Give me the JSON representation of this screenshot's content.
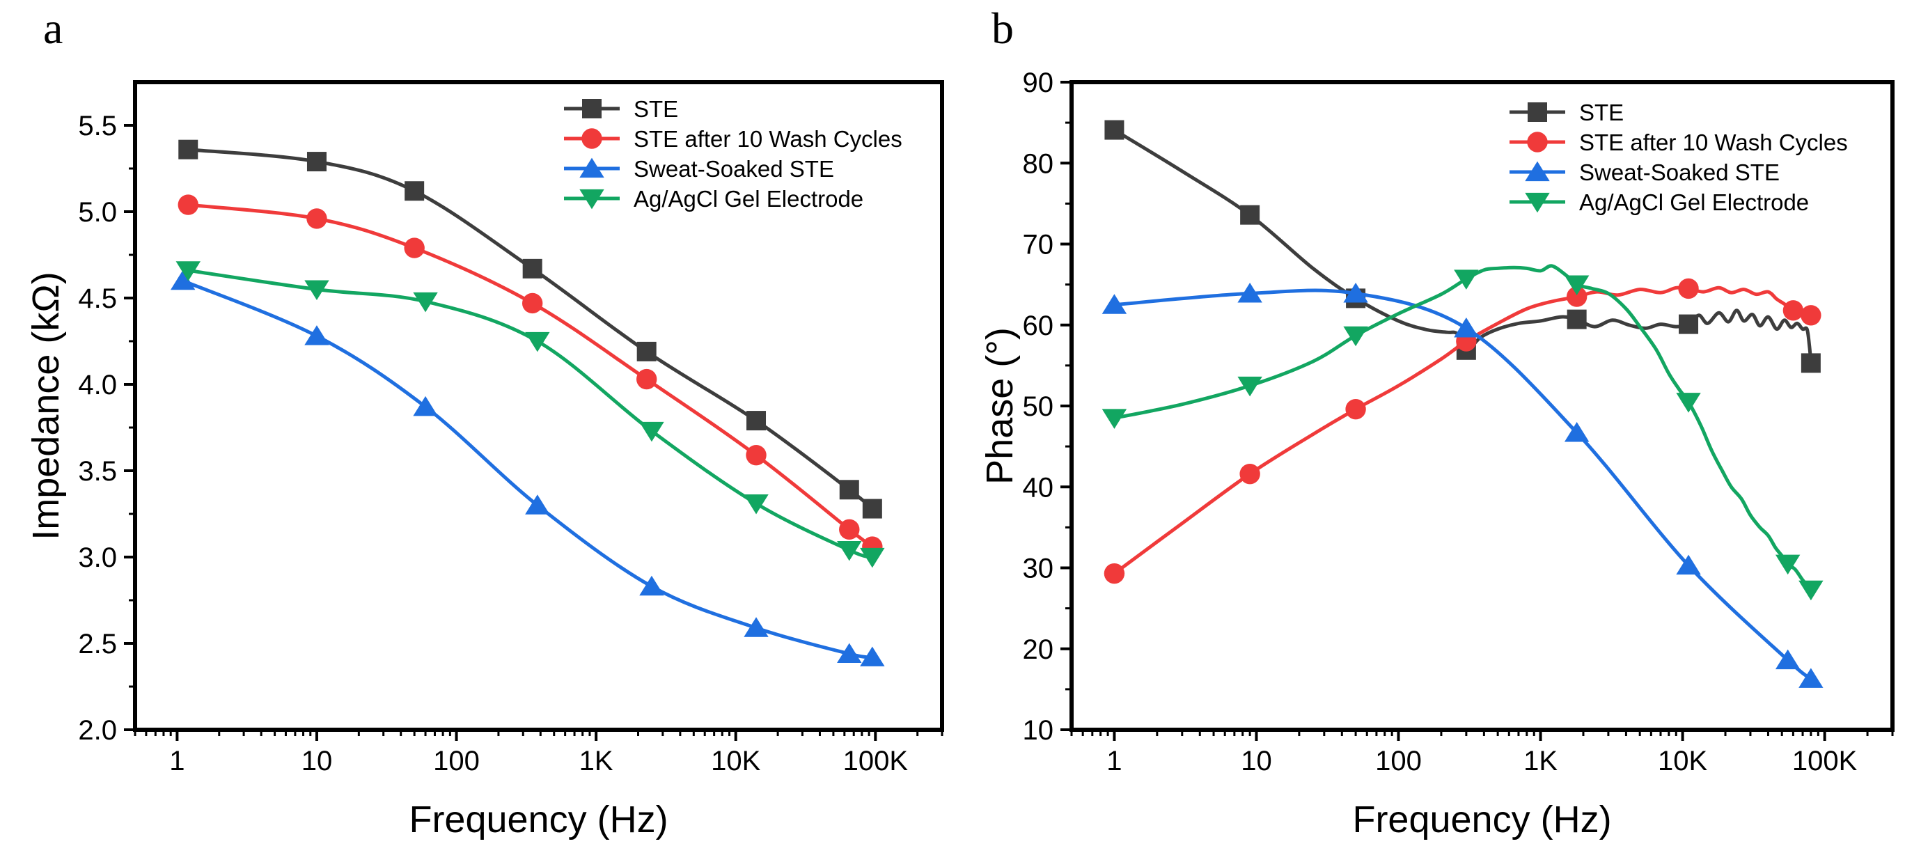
{
  "chart_data": [
    {
      "type": "line",
      "panel_label": "a",
      "xscale": "log",
      "xlabel": "Frequency (Hz)",
      "ylabel": "Impedance (kΩ)",
      "xlim": [
        0.5,
        300000
      ],
      "ylim": [
        2.0,
        5.75
      ],
      "x_ticks": [
        1,
        10,
        100,
        1000,
        10000,
        100000
      ],
      "x_tick_labels": [
        "1",
        "10",
        "100",
        "1K",
        "10K",
        "100K"
      ],
      "y_ticks": [
        2.0,
        2.5,
        3.0,
        3.5,
        4.0,
        4.5,
        5.0,
        5.5
      ],
      "y_tick_labels": [
        "2.0",
        "2.5",
        "3.0",
        "3.5",
        "4.0",
        "4.5",
        "5.0",
        "5.5"
      ],
      "legend_position": "top-right",
      "series": [
        {
          "name": "STE",
          "color": "#3d3d3d",
          "marker": "square",
          "x": [
            1.2,
            10,
            50,
            350,
            2300,
            14000,
            65000,
            95000
          ],
          "y": [
            5.36,
            5.29,
            5.12,
            4.67,
            4.19,
            3.79,
            3.39,
            3.28
          ]
        },
        {
          "name": "STE after 10 Wash Cycles",
          "color": "#f03a3a",
          "marker": "circle",
          "x": [
            1.2,
            10,
            50,
            350,
            2300,
            14000,
            65000,
            95000
          ],
          "y": [
            5.04,
            4.96,
            4.79,
            4.47,
            4.03,
            3.59,
            3.16,
            3.06
          ]
        },
        {
          "name": "Sweat-Soaked STE",
          "color": "#1f6fe0",
          "marker": "triangle-up",
          "x": [
            1.1,
            10,
            60,
            380,
            2500,
            14000,
            65000,
            95000
          ],
          "y": [
            4.6,
            4.28,
            3.87,
            3.3,
            2.83,
            2.59,
            2.44,
            2.42
          ]
        },
        {
          "name": "Ag/AgCl Gel Electrode",
          "color": "#12a661",
          "marker": "triangle-down",
          "x": [
            1.2,
            10,
            60,
            380,
            2500,
            14000,
            65000,
            95000
          ],
          "y": [
            4.66,
            4.55,
            4.48,
            4.25,
            3.73,
            3.31,
            3.04,
            3.0
          ]
        }
      ]
    },
    {
      "type": "line",
      "panel_label": "b",
      "xscale": "log",
      "xlabel": "Frequency (Hz)",
      "ylabel": "Phase (°)",
      "xlim": [
        0.5,
        300000
      ],
      "ylim": [
        10,
        90
      ],
      "x_ticks": [
        1,
        10,
        100,
        1000,
        10000,
        100000
      ],
      "x_tick_labels": [
        "1",
        "10",
        "100",
        "1K",
        "10K",
        "100K"
      ],
      "y_ticks": [
        10,
        20,
        30,
        40,
        50,
        60,
        70,
        80,
        90
      ],
      "y_tick_labels": [
        "10",
        "20",
        "30",
        "40",
        "50",
        "60",
        "70",
        "80",
        "90"
      ],
      "legend_position": "top-right",
      "series": [
        {
          "name": "STE",
          "color": "#3d3d3d",
          "marker": "square",
          "x": [
            1,
            9,
            50,
            300,
            1800,
            11000,
            80000
          ],
          "y": [
            84.1,
            73.6,
            63.3,
            56.9,
            60.7,
            60.1,
            55.3
          ],
          "line_x": [
            1,
            3,
            9,
            25,
            50,
            100,
            160,
            220,
            260,
            300,
            380,
            500,
            700,
            1000,
            1400,
            1800,
            2400,
            3200,
            4200,
            5500,
            7000,
            9000,
            11000,
            13000,
            15000,
            18000,
            21000,
            24000,
            27000,
            31000,
            35000,
            40000,
            46000,
            52000,
            58000,
            64000,
            70000,
            75000,
            78000,
            80000
          ],
          "line_y": [
            84.1,
            79,
            73.6,
            67,
            63.3,
            60.5,
            59.4,
            59.1,
            58.9,
            56.9,
            58.5,
            59.5,
            60.2,
            60.5,
            61,
            60.7,
            59.8,
            60.6,
            60.0,
            59.6,
            60.1,
            59.8,
            60.1,
            61.2,
            60.2,
            61.5,
            60.4,
            61.8,
            60.5,
            61.3,
            59.9,
            61.0,
            59.5,
            60.6,
            59.7,
            60.2,
            59.5,
            59.5,
            57.5,
            55.3
          ]
        },
        {
          "name": "STE after 10 Wash Cycles",
          "color": "#f03a3a",
          "marker": "circle",
          "x": [
            1,
            9,
            50,
            300,
            1800,
            11000,
            60000,
            80000
          ],
          "y": [
            29.3,
            41.6,
            49.6,
            58.0,
            63.5,
            64.5,
            61.8,
            61.2
          ],
          "line_x": [
            1,
            3,
            9,
            25,
            50,
            100,
            200,
            300,
            500,
            800,
            1200,
            1800,
            2500,
            3500,
            5000,
            7000,
            9000,
            11000,
            14000,
            18000,
            22000,
            27000,
            33000,
            40000,
            46000,
            52000,
            60000,
            70000,
            80000
          ],
          "line_y": [
            29.3,
            35.5,
            41.6,
            46.5,
            49.6,
            52.5,
            55.8,
            58.0,
            60.2,
            62.0,
            62.9,
            63.5,
            64.1,
            63.7,
            64.4,
            64.0,
            64.6,
            64.5,
            64.1,
            64.6,
            64.0,
            64.4,
            63.8,
            64.1,
            63.2,
            62.6,
            61.8,
            61.3,
            61.2
          ]
        },
        {
          "name": "Sweat-Soaked STE",
          "color": "#1f6fe0",
          "marker": "triangle-up",
          "x": [
            1,
            9,
            50,
            300,
            1800,
            11000,
            55000,
            80000
          ],
          "y": [
            62.5,
            63.9,
            63.9,
            59.6,
            46.7,
            30.3,
            18.6,
            16.3
          ]
        },
        {
          "name": "Ag/AgCl Gel Electrode",
          "color": "#12a661",
          "marker": "triangle-down",
          "x": [
            1,
            9,
            50,
            300,
            1800,
            11000,
            55000,
            80000
          ],
          "y": [
            48.5,
            52.5,
            58.7,
            65.7,
            65.0,
            50.5,
            30.5,
            27.3
          ],
          "line_x": [
            1,
            3,
            9,
            25,
            50,
            100,
            200,
            300,
            400,
            500,
            650,
            800,
            1000,
            1200,
            1500,
            1800,
            2300,
            3000,
            4000,
            5000,
            6500,
            8000,
            9500,
            11000,
            13500,
            16000,
            19000,
            22000,
            26000,
            30000,
            35000,
            40000,
            45000,
            50000,
            55000,
            62000,
            70000,
            80000
          ],
          "line_y": [
            48.5,
            50.2,
            52.5,
            55.5,
            58.7,
            61.4,
            63.8,
            65.7,
            66.8,
            67.0,
            67.1,
            67.0,
            66.7,
            67.3,
            66.2,
            65.0,
            64.5,
            63.9,
            62.0,
            59.8,
            57.0,
            54.0,
            52.0,
            50.5,
            47.5,
            44.5,
            42.0,
            40.0,
            38.5,
            36.5,
            35.0,
            34.0,
            32.5,
            31.5,
            30.5,
            29.8,
            28.5,
            27.3
          ]
        }
      ]
    }
  ]
}
